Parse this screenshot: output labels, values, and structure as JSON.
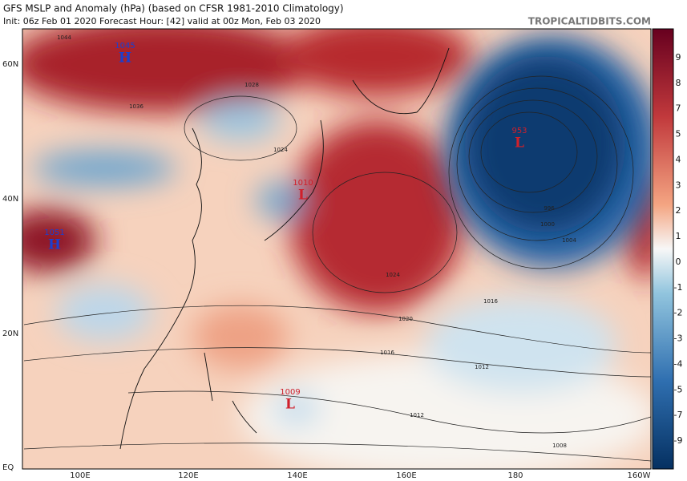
{
  "header": {
    "title": "GFS MSLP and Anomaly (hPa) (based on CFSR 1981-2010 Climatology)",
    "subtitle": "Init: 06z Feb 01 2020   Forecast Hour: [42]   valid at 00z Mon, Feb 03 2020",
    "watermark": "TROPICALTIDBITS.COM"
  },
  "lat_labels": [
    "60N",
    "40N",
    "20N",
    "EQ"
  ],
  "lon_labels": [
    "100E",
    "120E",
    "140E",
    "160E",
    "180",
    "160W"
  ],
  "colorbar": {
    "labels": [
      9,
      8,
      7,
      5,
      4,
      3,
      2,
      1,
      0,
      -1,
      -2,
      -3,
      -4,
      -5,
      -7,
      -9
    ]
  },
  "centers": [
    {
      "symbol": "H",
      "value": "1045"
    },
    {
      "symbol": "L",
      "value": "953"
    },
    {
      "symbol": "H",
      "value": "1051"
    },
    {
      "symbol": "L",
      "value": "1010"
    },
    {
      "symbol": "L",
      "value": "1009"
    }
  ],
  "isobar_labels": [
    "1044",
    "1036",
    "1028",
    "1024",
    "1020",
    "1016",
    "1012",
    "1012",
    "1008",
    "996",
    "1000",
    "1004",
    "1016",
    "1024"
  ]
}
